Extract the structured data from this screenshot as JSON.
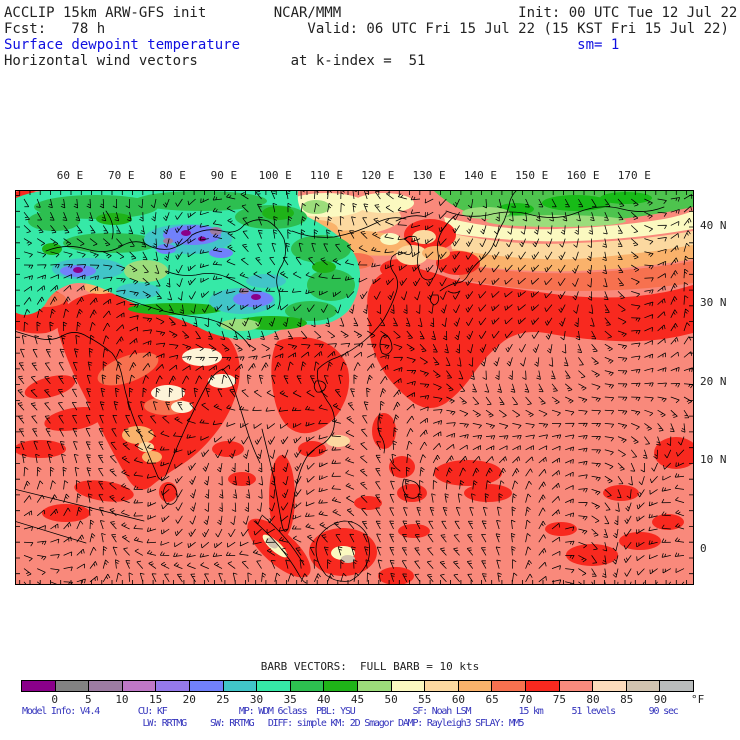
{
  "header": {
    "line1": "ACCLIP 15km ARW-GFS init        NCAR/MMM                     Init: 00 UTC Tue 12 Jul 22",
    "line2": "Fcst:   78 h                        Valid: 06 UTC Fri 15 Jul 22 (15 KST Fri 15 Jul 22)",
    "line3": "Surface dewpoint temperature                                        sm= 1",
    "line4": "Horizontal wind vectors           at k-index =  51"
  },
  "map": {
    "lon_labels": [
      "60 E",
      "70 E",
      "80 E",
      "90 E",
      "100 E",
      "110 E",
      "120 E",
      "130 E",
      "140 E",
      "150 E",
      "160 E",
      "170 E"
    ],
    "lat_labels": [
      "40 N",
      "30 N",
      "20 N",
      "10 N",
      "0"
    ]
  },
  "legend": {
    "barb_text": "BARB VECTORS:  FULL BARB = 10 kts"
  },
  "colorbar": {
    "ticks": [
      "0",
      "5",
      "10",
      "15",
      "20",
      "25",
      "30",
      "35",
      "40",
      "45",
      "50",
      "55",
      "60",
      "65",
      "70",
      "75",
      "80",
      "85",
      "90"
    ],
    "unit": "°F",
    "colors": [
      "#8a008a",
      "#828282",
      "#9d7ca2",
      "#bf78c7",
      "#9579ea",
      "#7181fb",
      "#41c5c8",
      "#36e9a7",
      "#2dbf50",
      "#1fb318",
      "#9cdd7b",
      "#fbf9c0",
      "#fcd9a0",
      "#fab26b",
      "#f7714f",
      "#f8291f",
      "#f98b7d",
      "#fcdcbc",
      "#d1c3af",
      "#b9bcbc"
    ]
  },
  "footer": {
    "line1": "Model Info: V4.4        CU: KF               MP: WDM 6class  PBL: YSU            SF: Noah LSM          15 km      51 levels       90 sec",
    "line2": "                         LW: RRTMG     SW: RRTMG   DIFF: simple KM: 2D Smagor DAMP: Rayleigh3 SFLAY: MM5"
  },
  "colors": {
    "header_blue": "#0f0fe0",
    "footer_blue": "#3434bc",
    "text": "#222222",
    "ocean_base": "#f9897b"
  },
  "chart_data": {
    "type": "heatmap",
    "title": "Surface dewpoint temperature",
    "overlay": "Horizontal wind vectors at k-index = 51",
    "model": "ACCLIP 15km ARW-GFS init",
    "org": "NCAR/MMM",
    "init_time": "00 UTC Tue 12 Jul 22",
    "forecast_hour": "78 h",
    "valid_time": "06 UTC Fri 15 Jul 22 (15 KST Fri 15 Jul 22)",
    "sm": "1",
    "x_ticks": [
      "60 E",
      "70 E",
      "80 E",
      "90 E",
      "100 E",
      "110 E",
      "120 E",
      "130 E",
      "140 E",
      "150 E",
      "160 E",
      "170 E"
    ],
    "y_ticks": [
      "40 N",
      "30 N",
      "20 N",
      "10 N",
      "0"
    ],
    "x_range_deg_e": [
      49,
      181
    ],
    "y_range_deg_n": [
      -6,
      45
    ],
    "colorbar_unit": "°F",
    "colorbar_levels": [
      0,
      5,
      10,
      15,
      20,
      25,
      30,
      35,
      40,
      45,
      50,
      55,
      60,
      65,
      70,
      75,
      80,
      85,
      90
    ],
    "colorbar_colors": [
      "#8a008a",
      "#828282",
      "#9d7ca2",
      "#bf78c7",
      "#9579ea",
      "#7181fb",
      "#41c5c8",
      "#36e9a7",
      "#2dbf50",
      "#1fb318",
      "#9cdd7b",
      "#fbf9c0",
      "#fcd9a0",
      "#fab26b",
      "#f7714f",
      "#f8291f",
      "#f98b7d",
      "#fcdcbc",
      "#d1c3af",
      "#b9bcbc"
    ],
    "wind_barb_scale": "FULL BARB = 10 kts",
    "features": [
      "Very low dewpoints (10-30 F: purple, violet, blue, cyan) over the Tarim Basin and western Tibetan Plateau",
      "Dewpoints 30-45 F (teal/green) across Central Asia and the Tibetan Plateau",
      "Green patch (40-50 F) over eastern Siberia in the upper right",
      "Cream/peach/orange dry band (50-65 F) from Mongolia across northeast China toward the Sea of Okhotsk",
      "High dewpoints 70-75 F (red) over India, Indochina, east China, Japan and a west Pacific band near 30 N",
      "Dewpoints 75-80 F (salmon) over most tropical oceans with scattered 70-75 F red patches",
      "Dense horizontal wind barbs plotted over the entire domain"
    ]
  }
}
